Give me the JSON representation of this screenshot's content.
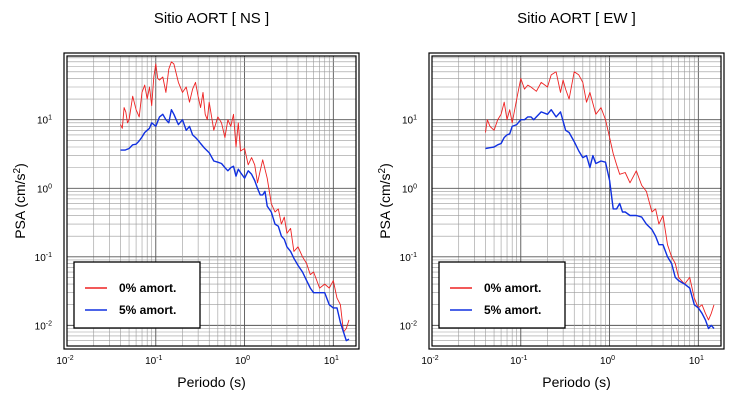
{
  "chart_data": [
    {
      "type": "line",
      "title": "Sitio AORT [ NS ]",
      "xlabel": "Periodo (s)",
      "ylabel": "PSA (cm/s",
      "ylabel_sup": "2",
      "ylabel_close": ")",
      "x_scale": "log",
      "y_scale": "log",
      "xlim": [
        0.01,
        18
      ],
      "ylim": [
        0.005,
        85
      ],
      "grid": true,
      "legend_position": "bottom-left",
      "x_ticks": [
        {
          "value": 0.01,
          "base": "10",
          "exp": "-2"
        },
        {
          "value": 0.1,
          "base": "10",
          "exp": "-1"
        },
        {
          "value": 1,
          "base": "10",
          "exp": "0"
        },
        {
          "value": 10,
          "base": "10",
          "exp": "1"
        }
      ],
      "y_ticks": [
        {
          "value": 0.01,
          "base": "10",
          "exp": "-2"
        },
        {
          "value": 0.1,
          "base": "10",
          "exp": "-1"
        },
        {
          "value": 1,
          "base": "10",
          "exp": "0"
        },
        {
          "value": 10,
          "base": "10",
          "exp": "1"
        }
      ],
      "series": [
        {
          "name": "0% amort.",
          "color": "#ee2222",
          "x": [
            0.04,
            0.042,
            0.044,
            0.046,
            0.048,
            0.05,
            0.055,
            0.06,
            0.065,
            0.07,
            0.075,
            0.08,
            0.085,
            0.09,
            0.095,
            0.1,
            0.105,
            0.11,
            0.12,
            0.13,
            0.14,
            0.15,
            0.16,
            0.18,
            0.2,
            0.22,
            0.24,
            0.26,
            0.28,
            0.3,
            0.32,
            0.34,
            0.36,
            0.38,
            0.4,
            0.45,
            0.5,
            0.55,
            0.6,
            0.65,
            0.7,
            0.75,
            0.8,
            0.85,
            0.9,
            1.0,
            1.1,
            1.2,
            1.3,
            1.4,
            1.5,
            1.6,
            1.8,
            2.0,
            2.2,
            2.4,
            2.6,
            2.8,
            3.0,
            3.3,
            3.6,
            4.0,
            4.5,
            5.0,
            5.5,
            6.0,
            7.0,
            8.0,
            9.0,
            10,
            11,
            12,
            13,
            14,
            15
          ],
          "values": [
            8.5,
            7.5,
            15,
            13,
            9,
            10,
            22,
            14,
            11,
            25,
            32,
            20,
            30,
            16,
            42,
            65,
            40,
            38,
            42,
            25,
            55,
            70,
            65,
            35,
            25,
            30,
            18,
            28,
            35,
            22,
            15,
            25,
            12,
            10,
            18,
            7,
            11,
            9,
            5.5,
            10,
            8,
            12,
            4,
            9,
            3.5,
            3.8,
            2.2,
            2.8,
            2.2,
            1.2,
            1.8,
            2.6,
            1.4,
            0.6,
            0.45,
            0.5,
            0.3,
            0.38,
            0.22,
            0.26,
            0.12,
            0.14,
            0.1,
            0.08,
            0.055,
            0.06,
            0.035,
            0.04,
            0.035,
            0.045,
            0.025,
            0.02,
            0.008,
            0.009,
            0.012
          ]
        },
        {
          "name": "5% amort.",
          "color": "#1030e0",
          "x": [
            0.04,
            0.045,
            0.05,
            0.055,
            0.06,
            0.065,
            0.07,
            0.075,
            0.08,
            0.085,
            0.09,
            0.1,
            0.11,
            0.12,
            0.13,
            0.14,
            0.15,
            0.16,
            0.17,
            0.18,
            0.2,
            0.22,
            0.24,
            0.26,
            0.28,
            0.3,
            0.32,
            0.35,
            0.4,
            0.45,
            0.5,
            0.55,
            0.6,
            0.65,
            0.7,
            0.75,
            0.8,
            0.85,
            0.9,
            1.0,
            1.1,
            1.2,
            1.3,
            1.4,
            1.5,
            1.6,
            1.7,
            1.8,
            2.0,
            2.2,
            2.4,
            2.6,
            2.8,
            3.0,
            3.3,
            3.6,
            4.0,
            4.5,
            5.0,
            5.5,
            6.0,
            7.0,
            8.0,
            9.0,
            10,
            11,
            12,
            13,
            14,
            15
          ],
          "values": [
            3.6,
            3.6,
            3.8,
            4.3,
            4.4,
            4.9,
            5.6,
            6.5,
            7,
            7.5,
            9,
            8,
            11,
            12,
            10,
            9,
            14,
            12,
            10,
            8.5,
            10,
            7,
            8,
            6,
            5.5,
            5,
            4.5,
            3.9,
            3.3,
            2.5,
            2.4,
            2.3,
            2,
            1.8,
            2,
            2.1,
            1.5,
            1.9,
            1.7,
            1.4,
            1.8,
            1.6,
            1.3,
            1.0,
            0.8,
            0.8,
            0.9,
            0.55,
            0.45,
            0.3,
            0.28,
            0.2,
            0.18,
            0.14,
            0.12,
            0.095,
            0.075,
            0.06,
            0.045,
            0.035,
            0.03,
            0.03,
            0.03,
            0.02,
            0.018,
            0.018,
            0.011,
            0.008,
            0.006,
            0.0063
          ]
        }
      ]
    },
    {
      "type": "line",
      "title": "Sitio AORT [ EW ]",
      "xlabel": "Periodo (s)",
      "ylabel": "PSA (cm/s",
      "ylabel_sup": "2",
      "ylabel_close": ")",
      "x_scale": "log",
      "y_scale": "log",
      "xlim": [
        0.01,
        18
      ],
      "ylim": [
        0.005,
        85
      ],
      "grid": true,
      "legend_position": "bottom-left",
      "x_ticks": [
        {
          "value": 0.01,
          "base": "10",
          "exp": "-2"
        },
        {
          "value": 0.1,
          "base": "10",
          "exp": "-1"
        },
        {
          "value": 1,
          "base": "10",
          "exp": "0"
        },
        {
          "value": 10,
          "base": "10",
          "exp": "1"
        }
      ],
      "y_ticks": [
        {
          "value": 0.01,
          "base": "10",
          "exp": "-2"
        },
        {
          "value": 0.1,
          "base": "10",
          "exp": "-1"
        },
        {
          "value": 1,
          "base": "10",
          "exp": "0"
        },
        {
          "value": 10,
          "base": "10",
          "exp": "1"
        }
      ],
      "series": [
        {
          "name": "0% amort.",
          "color": "#ee2222",
          "x": [
            0.04,
            0.042,
            0.045,
            0.05,
            0.055,
            0.06,
            0.065,
            0.07,
            0.075,
            0.08,
            0.09,
            0.1,
            0.11,
            0.12,
            0.13,
            0.15,
            0.17,
            0.2,
            0.22,
            0.25,
            0.28,
            0.3,
            0.32,
            0.35,
            0.4,
            0.45,
            0.5,
            0.55,
            0.6,
            0.7,
            0.8,
            0.9,
            1.0,
            1.1,
            1.2,
            1.3,
            1.5,
            1.7,
            2.0,
            2.3,
            2.6,
            3.0,
            3.3,
            3.6,
            4.0,
            4.5,
            5.0,
            5.5,
            6.0,
            7.0,
            8.0,
            9.0,
            10,
            11,
            12,
            13,
            14,
            15
          ],
          "values": [
            6.5,
            10,
            8,
            7,
            10,
            12,
            18,
            10,
            14,
            9,
            20,
            40,
            28,
            32,
            30,
            26,
            35,
            30,
            45,
            50,
            25,
            38,
            28,
            20,
            50,
            45,
            35,
            18,
            25,
            12,
            15,
            10,
            5.5,
            3.2,
            2.2,
            1.6,
            1.7,
            1.2,
            1.8,
            1.1,
            0.9,
            0.45,
            0.5,
            0.3,
            0.4,
            0.15,
            0.1,
            0.08,
            0.05,
            0.04,
            0.05,
            0.025,
            0.018,
            0.02,
            0.015,
            0.012,
            0.015,
            0.02
          ]
        },
        {
          "name": "5% amort.",
          "color": "#1030e0",
          "x": [
            0.04,
            0.045,
            0.05,
            0.055,
            0.06,
            0.065,
            0.07,
            0.075,
            0.08,
            0.09,
            0.1,
            0.11,
            0.12,
            0.13,
            0.14,
            0.15,
            0.17,
            0.2,
            0.22,
            0.25,
            0.28,
            0.3,
            0.32,
            0.35,
            0.4,
            0.45,
            0.5,
            0.55,
            0.6,
            0.65,
            0.7,
            0.8,
            0.9,
            1.0,
            1.1,
            1.2,
            1.3,
            1.4,
            1.5,
            1.7,
            2.0,
            2.3,
            2.6,
            3.0,
            3.3,
            3.6,
            4.0,
            4.5,
            5.0,
            5.5,
            6.0,
            7.0,
            8.0,
            9.0,
            10,
            11,
            12,
            13,
            14,
            15
          ],
          "values": [
            3.8,
            3.9,
            4.0,
            4.3,
            4.5,
            5.5,
            6,
            6.2,
            8,
            8.5,
            10,
            10,
            11,
            11,
            10,
            11,
            13,
            12,
            14,
            11,
            13,
            9.5,
            7,
            6.5,
            4.8,
            3.5,
            2.8,
            3.0,
            2.0,
            3.0,
            2.3,
            2.5,
            2.4,
            1.3,
            0.5,
            0.5,
            0.6,
            0.45,
            0.45,
            0.4,
            0.4,
            0.38,
            0.3,
            0.25,
            0.2,
            0.15,
            0.15,
            0.1,
            0.08,
            0.05,
            0.045,
            0.04,
            0.035,
            0.02,
            0.018,
            0.015,
            0.012,
            0.009,
            0.01,
            0.009
          ]
        }
      ]
    }
  ]
}
